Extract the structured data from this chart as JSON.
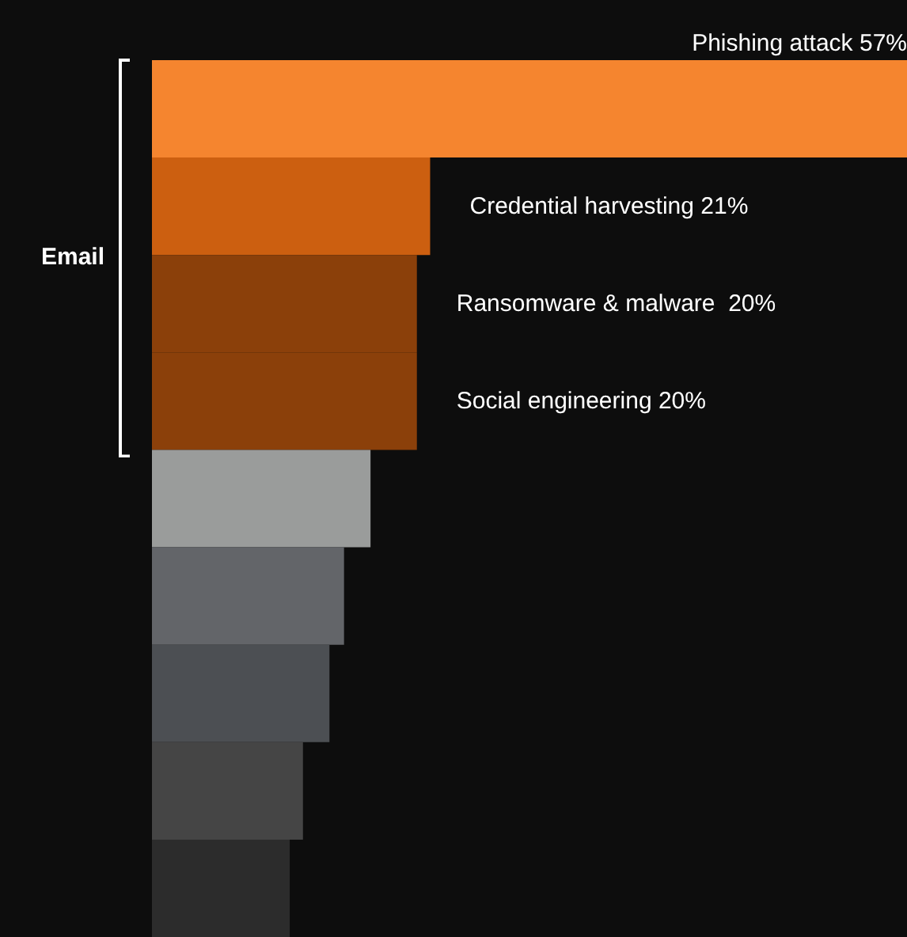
{
  "chart_data": {
    "type": "bar",
    "orientation": "horizontal",
    "categories": [
      null,
      null,
      null,
      null,
      null,
      null,
      null,
      null,
      null
    ],
    "values": [
      57,
      21,
      20,
      20,
      16.5,
      14.5,
      13.4,
      11.4,
      10.4
    ],
    "colors": [
      "#f5852f",
      "#cc5f10",
      "#8b400a",
      "#8b400a",
      "#9a9c9b",
      "#636569",
      "#4c4f53",
      "#454545",
      "#2c2c2c"
    ],
    "value_labels": [
      "Phishing attack 57%",
      "Credential harvesting 21%",
      "Ransomware & malware  20%",
      "Social engineering 20%",
      null,
      null,
      null,
      null,
      null
    ],
    "annotations": [
      "Email"
    ],
    "tick_labels": false
  }
}
